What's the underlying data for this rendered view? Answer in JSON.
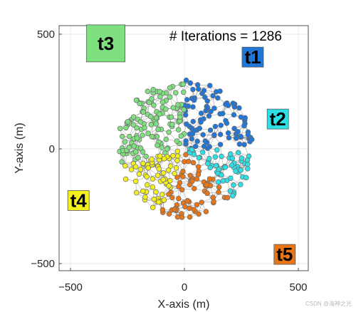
{
  "chart_data": {
    "type": "scatter",
    "title": "",
    "xlabel": "X-axis (m)",
    "ylabel": "Y-axis (m)",
    "xlim": [
      -500,
      500
    ],
    "ylim": [
      -500,
      500
    ],
    "xticks": [
      -500,
      0,
      500
    ],
    "yticks": [
      -500,
      0,
      500
    ],
    "grid": true,
    "annotation": "# Iterations = 1286",
    "network": {
      "radius": 300,
      "node_count": 420,
      "link_range": 55,
      "node_style": "circle, grey edge"
    },
    "teams": [
      {
        "label": "t1",
        "color": "#2176d9",
        "anchor": [
          300,
          400
        ],
        "angle_range_deg": [
          0,
          90
        ]
      },
      {
        "label": "t2",
        "color": "#2de0e6",
        "anchor": [
          410,
          130
        ],
        "angle_range_deg": [
          -45,
          0
        ]
      },
      {
        "label": "t3",
        "color": "#7ee07e",
        "anchor": [
          -345,
          460
        ],
        "angle_range_deg": [
          90,
          195
        ]
      },
      {
        "label": "t4",
        "color": "#f4f01c",
        "anchor": [
          -465,
          -225
        ],
        "angle_range_deg": [
          195,
          250
        ]
      },
      {
        "label": "t5",
        "color": "#e87516",
        "anchor": [
          440,
          -460
        ],
        "angle_range_deg": [
          250,
          315
        ]
      }
    ]
  },
  "watermark": "CSDN @海神之光"
}
